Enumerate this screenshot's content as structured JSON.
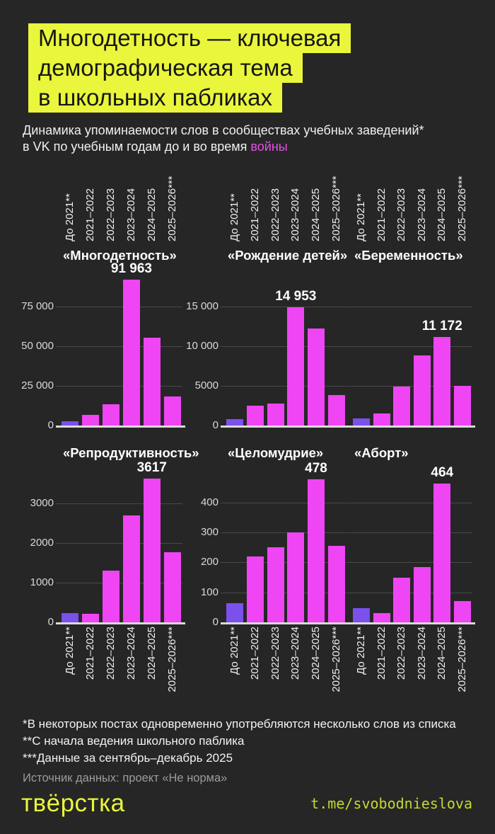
{
  "header": {
    "title_lines": [
      "Многодетность — ключевая",
      "демографическая тема",
      "в школьных пабликах"
    ],
    "subtitle_line1": "Динамика упоминаемости слов в сообществах учебных заведений*",
    "subtitle_line2_prefix": "в VK по учебным годам до и во время ",
    "subtitle_accent_word": "войны"
  },
  "chart_data": [
    {
      "type": "bar",
      "title": "«Многодетность»",
      "categories": [
        "До 2021**",
        "2021–2022",
        "2022–2023",
        "2023–2024",
        "2024–2025",
        "2025–2026***"
      ],
      "values": [
        2800,
        6500,
        13500,
        91963,
        55500,
        18500
      ],
      "peak_label": "91 963",
      "peak_index": 3,
      "yticks": [
        {
          "value": 0,
          "label": "0"
        },
        {
          "value": 25000,
          "label": "25 000"
        },
        {
          "value": 50000,
          "label": "50 000"
        },
        {
          "value": 75000,
          "label": "75 000"
        }
      ],
      "ylim": [
        0,
        94640
      ],
      "show_ytick_labels": true,
      "x_labels_position": "top"
    },
    {
      "type": "bar",
      "title": "«Рождение детей»",
      "categories": [
        "До 2021**",
        "2021–2022",
        "2022–2023",
        "2023–2024",
        "2024–2025",
        "2025–2026***"
      ],
      "values": [
        800,
        2500,
        2800,
        14953,
        12200,
        3800
      ],
      "peak_label": "14 953",
      "peak_index": 3,
      "yticks": [
        {
          "value": 0,
          "label": "0"
        },
        {
          "value": 5000,
          "label": "5000"
        },
        {
          "value": 10000,
          "label": "10 000"
        },
        {
          "value": 15000,
          "label": "15 000"
        }
      ],
      "ylim": [
        0,
        18930
      ],
      "show_ytick_labels": true,
      "x_labels_position": "top"
    },
    {
      "type": "bar",
      "title": "«Беременность»",
      "categories": [
        "До 2021**",
        "2021–2022",
        "2022–2023",
        "2023–2024",
        "2024–2025",
        "2025–2026***"
      ],
      "values": [
        850,
        1500,
        4900,
        8800,
        11172,
        5000
      ],
      "peak_label": "11 172",
      "peak_index": 4,
      "yticks": [
        {
          "value": 0
        },
        {
          "value": 5000
        },
        {
          "value": 10000
        },
        {
          "value": 15000
        }
      ],
      "ylim": [
        0,
        18930
      ],
      "show_ytick_labels": false,
      "x_labels_position": "top"
    },
    {
      "type": "bar",
      "title": "«Репродуктивность»",
      "categories": [
        "До 2021**",
        "2021–2022",
        "2022–2023",
        "2023–2024",
        "2024–2025",
        "2025–2026***"
      ],
      "values": [
        240,
        210,
        1300,
        2700,
        3617,
        1770
      ],
      "peak_label": "3617",
      "peak_index": 4,
      "yticks": [
        {
          "value": 0,
          "label": "0"
        },
        {
          "value": 1000,
          "label": "1000"
        },
        {
          "value": 2000,
          "label": "2000"
        },
        {
          "value": 3000,
          "label": "3000"
        }
      ],
      "ylim": [
        0,
        3643
      ],
      "show_ytick_labels": true,
      "x_labels_position": "bottom"
    },
    {
      "type": "bar",
      "title": "«Целомудрие»",
      "categories": [
        "До 2021**",
        "2021–2022",
        "2022–2023",
        "2023–2024",
        "2024–2025",
        "2025–2026***"
      ],
      "values": [
        65,
        220,
        250,
        300,
        478,
        255
      ],
      "peak_label": "478",
      "peak_index": 4,
      "yticks": [
        {
          "value": 0,
          "label": "0"
        },
        {
          "value": 100,
          "label": "100"
        },
        {
          "value": 200,
          "label": "200"
        },
        {
          "value": 300,
          "label": "300"
        },
        {
          "value": 400,
          "label": "400"
        }
      ],
      "ylim": [
        0,
        482
      ],
      "show_ytick_labels": true,
      "x_labels_position": "bottom"
    },
    {
      "type": "bar",
      "title": "«Аборт»",
      "categories": [
        "До 2021**",
        "2021–2022",
        "2022–2023",
        "2023–2024",
        "2024–2025",
        "2025–2026***"
      ],
      "values": [
        48,
        30,
        150,
        185,
        464,
        70
      ],
      "peak_label": "464",
      "peak_index": 4,
      "yticks": [
        {
          "value": 0
        },
        {
          "value": 100
        },
        {
          "value": 200
        },
        {
          "value": 300
        },
        {
          "value": 400
        }
      ],
      "ylim": [
        0,
        482
      ],
      "show_ytick_labels": false,
      "x_labels_position": "bottom"
    }
  ],
  "footnotes": [
    "*В некоторых постах одновременно употребляются несколько слов из списка",
    "**С начала ведения школьного паблика",
    "***Данные за сентябрь–декабрь 2025"
  ],
  "source": "Источник данных: проект «Не норма»",
  "footer": {
    "logo": "твёрстка",
    "link": "t.me/svobodnieslova"
  },
  "colors": {
    "background": "#262626",
    "highlight_yellow": "#e9f63b",
    "accent_magenta": "#e44fe8",
    "bar": "#ef45f4",
    "bar_first": "#7b50ec",
    "gridline": "#494949",
    "axis_line": "#d9d9d9",
    "ytick_text": "#d9d9d9",
    "xtick_text": "#f0f0f0",
    "muted_text": "#9c9c9c",
    "link_text": "#c6d832"
  }
}
